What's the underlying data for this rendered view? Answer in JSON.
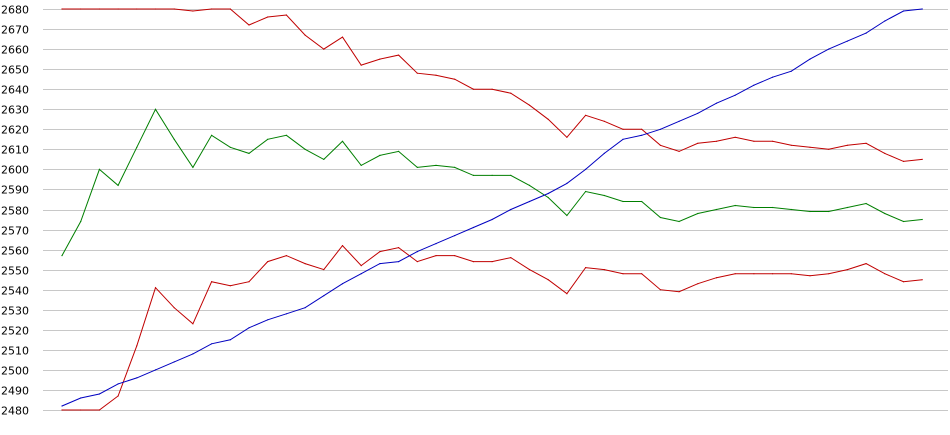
{
  "chart_data": {
    "type": "line",
    "title": "",
    "xlabel": "",
    "ylabel": "",
    "ylim": [
      2480,
      2680
    ],
    "yticks": [
      2480,
      2490,
      2500,
      2510,
      2520,
      2530,
      2540,
      2550,
      2560,
      2570,
      2580,
      2590,
      2600,
      2610,
      2620,
      2630,
      2640,
      2650,
      2660,
      2670,
      2680
    ],
    "x": [
      0,
      1,
      2,
      3,
      4,
      5,
      6,
      7,
      8,
      9,
      10,
      11,
      12,
      13,
      14,
      15,
      16,
      17,
      18,
      19,
      20,
      21,
      22,
      23,
      24,
      25,
      26,
      27,
      28,
      29,
      30,
      31,
      32,
      33,
      34,
      35,
      36,
      37,
      38,
      39,
      40,
      41,
      42,
      43,
      44,
      45,
      46,
      47
    ],
    "grid": true,
    "legend": "none",
    "series": [
      {
        "color": "#c00000",
        "values": [
          2680,
          2680,
          2680,
          2680,
          2680,
          2680,
          2680,
          2679,
          2680,
          2680,
          2672,
          2676,
          2677,
          2667,
          2660,
          2666,
          2652,
          2655,
          2657,
          2648,
          2647,
          2645,
          2640,
          2640,
          2638,
          2632,
          2625,
          2616,
          2627,
          2624,
          2620,
          2620,
          2612,
          2609,
          2613,
          2614,
          2616,
          2614,
          2614,
          2612,
          2611,
          2610,
          2612,
          2613,
          2608,
          2604,
          2605,
          null
        ]
      },
      {
        "color": "#007f00",
        "values": [
          2557,
          2574,
          2600,
          2592,
          2611,
          2630,
          2615,
          2601,
          2617,
          2611,
          2608,
          2615,
          2617,
          2610,
          2605,
          2614,
          2602,
          2607,
          2609,
          2601,
          2602,
          2601,
          2597,
          2597,
          2597,
          2592,
          2586,
          2577,
          2589,
          2587,
          2584,
          2584,
          2576,
          2574,
          2578,
          2580,
          2582,
          2581,
          2581,
          2580,
          2579,
          2579,
          2581,
          2583,
          2578,
          2574,
          2575,
          null
        ]
      },
      {
        "color": "#c00000",
        "values": [
          2480,
          2480,
          2480,
          2487,
          2512,
          2541,
          2531,
          2523,
          2544,
          2542,
          2544,
          2554,
          2557,
          2553,
          2550,
          2562,
          2552,
          2559,
          2561,
          2554,
          2557,
          2557,
          2554,
          2554,
          2556,
          2550,
          2545,
          2538,
          2551,
          2550,
          2548,
          2548,
          2540,
          2539,
          2543,
          2546,
          2548,
          2548,
          2548,
          2548,
          2547,
          2548,
          2550,
          2553,
          2548,
          2544,
          2545,
          null
        ]
      },
      {
        "color": "#0000c0",
        "values": [
          2482,
          2486,
          2488,
          2493,
          2496,
          2500,
          2504,
          2508,
          2513,
          2515,
          2521,
          2525,
          2528,
          2531,
          2537,
          2543,
          2548,
          2553,
          2554,
          2559,
          2563,
          2567,
          2571,
          2575,
          2580,
          2584,
          2588,
          2593,
          2600,
          2608,
          2615,
          2617,
          2620,
          2624,
          2628,
          2633,
          2637,
          2642,
          2646,
          2649,
          2655,
          2660,
          2664,
          2668,
          2674,
          2679,
          2680,
          null
        ]
      }
    ]
  }
}
